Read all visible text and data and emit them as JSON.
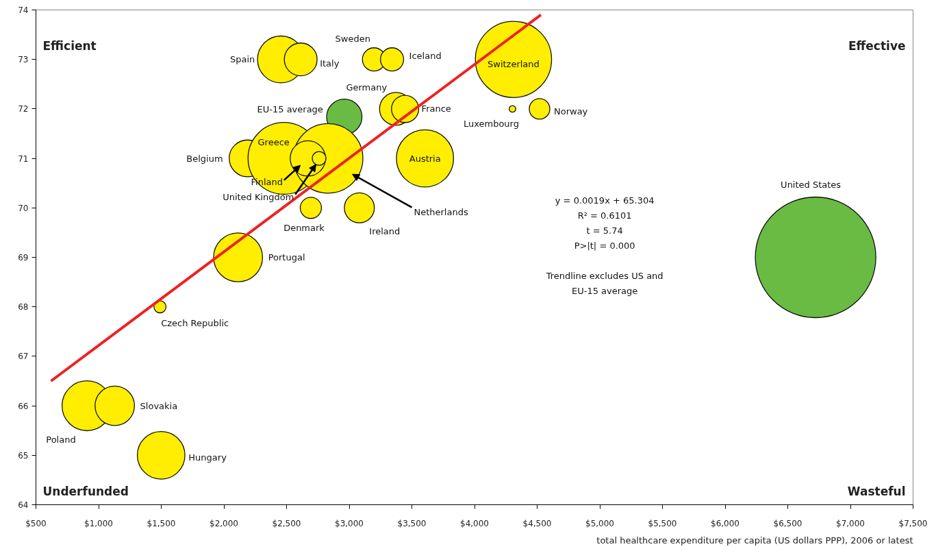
{
  "chart_data": {
    "type": "bubble",
    "xlabel": "total healthcare expenditure per capita (US dollars PPP), 2006 or latest",
    "xlim": [
      500,
      7500
    ],
    "ylim": [
      64,
      74
    ],
    "xticks": [
      {
        "value": 500,
        "label": "$500"
      },
      {
        "value": 1000,
        "label": "$1,000"
      },
      {
        "value": 1500,
        "label": "$1,500"
      },
      {
        "value": 2000,
        "label": "$2,000"
      },
      {
        "value": 2500,
        "label": "$2,500"
      },
      {
        "value": 3000,
        "label": "$3,000"
      },
      {
        "value": 3500,
        "label": "$3,500"
      },
      {
        "value": 4000,
        "label": "$4,000"
      },
      {
        "value": 4500,
        "label": "$4,500"
      },
      {
        "value": 5000,
        "label": "$5,000"
      },
      {
        "value": 5500,
        "label": "$5,500"
      },
      {
        "value": 6000,
        "label": "$6,000"
      },
      {
        "value": 6500,
        "label": "$6,500"
      },
      {
        "value": 7000,
        "label": "$7,000"
      },
      {
        "value": 7500,
        "label": "$7,500"
      }
    ],
    "yticks": [
      64,
      65,
      66,
      67,
      68,
      69,
      70,
      71,
      72,
      73,
      74
    ],
    "annotations": [
      "Efficient",
      "Effective",
      "Underfunded",
      "Wasteful",
      "y = 0.0019x + 65.304",
      "R² = 0.6101",
      "t = 5.74",
      "P>|t| = 0.000",
      "Trendline excludes US and",
      "EU-15 average"
    ],
    "series": [
      {
        "name": "Spain",
        "color": "#ffee00",
        "x": [
          2455
        ],
        "values": [
          73
        ],
        "sizes": [
          0.151
        ]
      },
      {
        "name": "Italy",
        "color": "#ffee00",
        "x": [
          2613
        ],
        "values": [
          73
        ],
        "sizes": [
          0.074
        ]
      },
      {
        "name": "Sweden",
        "color": "#ffee00",
        "x": [
          3198
        ],
        "values": [
          73
        ],
        "sizes": [
          0.037
        ]
      },
      {
        "name": "Iceland",
        "color": "#ffee00",
        "x": [
          3342
        ],
        "values": [
          73
        ],
        "sizes": [
          0.037
        ]
      },
      {
        "name": "Germany",
        "color": "#ffee00",
        "x": [
          3373
        ],
        "values": [
          72
        ],
        "sizes": [
          0.074
        ]
      },
      {
        "name": "France",
        "color": "#ffee00",
        "x": [
          3446
        ],
        "values": [
          72
        ],
        "sizes": [
          0.051
        ]
      },
      {
        "name": "EU-15 average",
        "color": "#6abb44",
        "x": [
          2961
        ],
        "values": [
          71.84
        ],
        "sizes": [
          0.086
        ]
      },
      {
        "name": "Belgium",
        "color": "#ffee00",
        "x": [
          2189
        ],
        "values": [
          71
        ],
        "sizes": [
          0.093
        ]
      },
      {
        "name": "Greece",
        "color": "#ffee00",
        "x": [
          2479
        ],
        "values": [
          71
        ],
        "sizes": [
          0.355
        ]
      },
      {
        "name": "Netherlands",
        "color": "#ffee00",
        "x": [
          2832
        ],
        "values": [
          71
        ],
        "sizes": [
          0.332
        ]
      },
      {
        "name": "Finland",
        "color": "#ffee00",
        "x": [
          2670
        ],
        "values": [
          71
        ],
        "sizes": [
          0.086
        ]
      },
      {
        "name": "United Kingdom",
        "color": "#ffee00",
        "x": [
          2760
        ],
        "values": [
          71
        ],
        "sizes": [
          0.013
        ]
      },
      {
        "name": "Austria",
        "color": "#ffee00",
        "x": [
          3605
        ],
        "values": [
          71
        ],
        "sizes": [
          0.225
        ]
      },
      {
        "name": "Denmark",
        "color": "#ffee00",
        "x": [
          2694
        ],
        "values": [
          70
        ],
        "sizes": [
          0.031
        ]
      },
      {
        "name": "Ireland",
        "color": "#ffee00",
        "x": [
          3081
        ],
        "values": [
          70
        ],
        "sizes": [
          0.062
        ]
      },
      {
        "name": "Portugal",
        "color": "#ffee00",
        "x": [
          2113
        ],
        "values": [
          69
        ],
        "sizes": [
          0.165
        ]
      },
      {
        "name": "Switzerland",
        "color": "#ffee00",
        "x": [
          4311
        ],
        "values": [
          73
        ],
        "sizes": [
          0.4
        ]
      },
      {
        "name": "Luxembourg",
        "color": "#ffee00",
        "x": [
          4303
        ],
        "values": [
          72
        ],
        "sizes": [
          0.003
        ]
      },
      {
        "name": "Norway",
        "color": "#ffee00",
        "x": [
          4519
        ],
        "values": [
          72
        ],
        "sizes": [
          0.029
        ]
      },
      {
        "name": "United States",
        "color": "#6abb44",
        "x": [
          6722
        ],
        "values": [
          69
        ],
        "sizes": [
          1
        ]
      },
      {
        "name": "Czech Republic",
        "color": "#ffee00",
        "x": [
          1490
        ],
        "values": [
          68
        ],
        "sizes": [
          0.01
        ]
      },
      {
        "name": "Poland",
        "color": "#ffee00",
        "x": [
          907
        ],
        "values": [
          66
        ],
        "sizes": [
          0.171
        ]
      },
      {
        "name": "Slovakia",
        "color": "#ffee00",
        "x": [
          1129
        ],
        "values": [
          66
        ],
        "sizes": [
          0.107
        ]
      },
      {
        "name": "Hungary",
        "color": "#ffee00",
        "x": [
          1499
        ],
        "values": [
          65
        ],
        "sizes": [
          0.156
        ]
      },
      {
        "type": "line",
        "color": "#ee2222",
        "x": [
          620,
          4530
        ],
        "values": [
          66.5,
          73.9
        ]
      }
    ]
  }
}
